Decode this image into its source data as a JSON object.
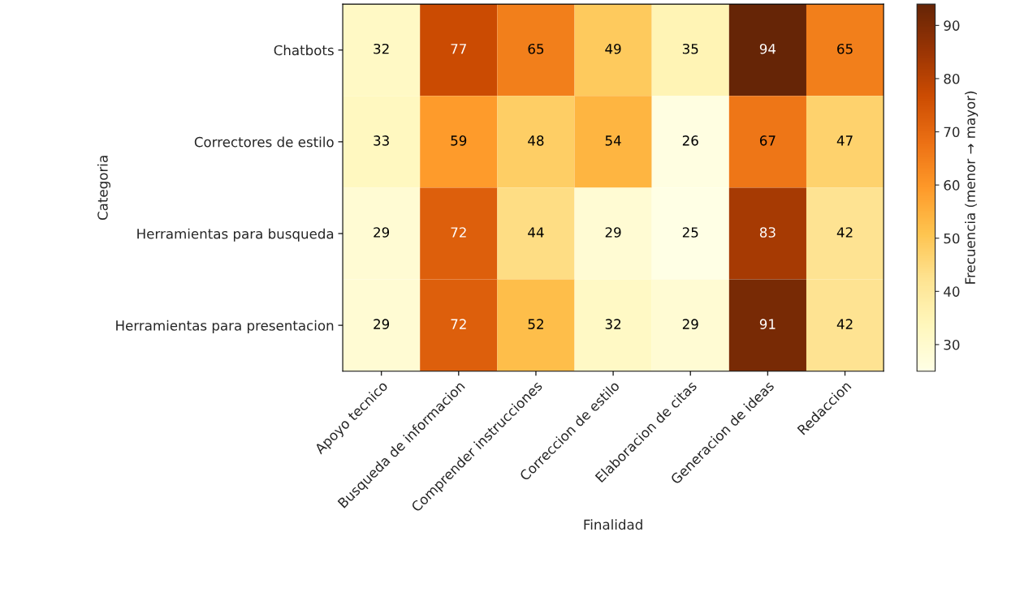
{
  "chart_data": {
    "type": "heatmap",
    "xlabel": "Finalidad",
    "ylabel": "Categoria",
    "clabel": "Frecuencia (menor → mayor)",
    "categories": [
      "Apoyo tecnico",
      "Busqueda de informacion",
      "Comprender instrucciones",
      "Correccion de estilo",
      "Elaboracion de citas",
      "Generacion de ideas",
      "Redaccion"
    ],
    "y_categories": [
      "Chatbots",
      "Correctores de estilo",
      "Herramientas para busqueda",
      "Herramientas para presentacion"
    ],
    "cells": [
      [
        32,
        77,
        65,
        49,
        35,
        94,
        65
      ],
      [
        33,
        59,
        48,
        54,
        26,
        67,
        47
      ],
      [
        29,
        72,
        44,
        29,
        25,
        83,
        42
      ],
      [
        29,
        72,
        52,
        32,
        29,
        91,
        42
      ]
    ],
    "clim": [
      25,
      94
    ],
    "cticks": [
      30,
      40,
      50,
      60,
      70,
      80,
      90
    ],
    "data_labels": true
  }
}
